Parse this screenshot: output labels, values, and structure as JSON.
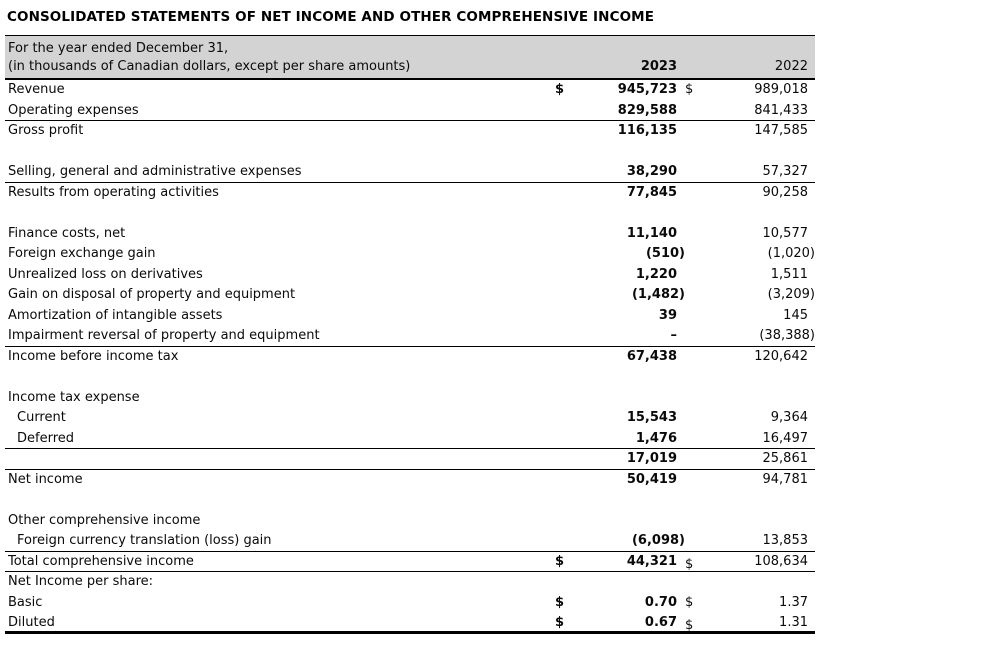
{
  "title": "CONSOLIDATED STATEMENTS OF NET INCOME AND OTHER COMPREHENSIVE INCOME",
  "colors": {
    "header_band_bg": "#d3d3d3",
    "text": "#0a0a0a",
    "rule": "#000000"
  },
  "table": {
    "header": {
      "line1": "For the year ended December 31,",
      "line2": "(in thousands of Canadian dollars, except per share amounts)",
      "col2023": "2023",
      "col2022": "2022"
    },
    "rows": [
      {
        "label": "Revenue",
        "usd2023": "$",
        "val2023": "945,723",
        "usd2022": "$",
        "val2022": "989,018"
      },
      {
        "label": "Operating expenses",
        "val2023": "829,588",
        "val2022": "841,433",
        "rule": true
      },
      {
        "label": "Gross profit",
        "val2023": "116,135",
        "val2022": "147,585"
      },
      {
        "spacer": true
      },
      {
        "label": "Selling, general and administrative expenses",
        "val2023": "38,290",
        "val2022": "57,327",
        "rule": true
      },
      {
        "label": "Results from operating activities",
        "val2023": "77,845",
        "val2022": "90,258"
      },
      {
        "spacer": true
      },
      {
        "label": "Finance costs, net",
        "val2023": "11,140",
        "val2022": "10,577"
      },
      {
        "label": "Foreign exchange gain",
        "val2023": "(510)",
        "val2022": "(1,020)"
      },
      {
        "label": "Unrealized loss on derivatives",
        "val2023": "1,220",
        "val2022": "1,511"
      },
      {
        "label": "Gain on disposal of property and equipment",
        "val2023": "(1,482)",
        "val2022": "(3,209)"
      },
      {
        "label": "Amortization of intangible assets",
        "val2023": "39",
        "val2022": "145"
      },
      {
        "label": "Impairment reversal of property and equipment",
        "val2023": "–",
        "val2022": "(38,388)",
        "rule": true
      },
      {
        "label": "Income before income tax",
        "val2023": "67,438",
        "val2022": "120,642"
      },
      {
        "spacer": true
      },
      {
        "label": "Income tax expense"
      },
      {
        "label": "Current",
        "indent": true,
        "val2023": "15,543",
        "val2022": "9,364"
      },
      {
        "label": "Deferred",
        "indent": true,
        "val2023": "1,476",
        "val2022": "16,497",
        "rule": true
      },
      {
        "label": "",
        "val2023": "17,019",
        "val2022": "25,861",
        "rule": true
      },
      {
        "label": "Net income",
        "val2023": "50,419",
        "val2022": "94,781"
      },
      {
        "spacer": true
      },
      {
        "label": "Other comprehensive income"
      },
      {
        "label": "Foreign currency translation (loss) gain",
        "indent": true,
        "val2023": "(6,098)",
        "val2022": "13,853",
        "rule": true
      },
      {
        "label": "Total comprehensive income",
        "usd2023": "$",
        "val2023": "44,321",
        "usd2022": "$",
        "usd2022_low": true,
        "val2022": "108,634",
        "rule": true
      },
      {
        "label": "Net Income per share:"
      },
      {
        "label": "Basic",
        "usd2023": "$",
        "val2023": "0.70",
        "usd2022": "$",
        "val2022": "1.37"
      },
      {
        "label": "Diluted",
        "usd2023": "$",
        "val2023": "0.67",
        "usd2022": "$",
        "usd2022_low": true,
        "val2022": "1.31",
        "rule_thick": true
      }
    ]
  }
}
